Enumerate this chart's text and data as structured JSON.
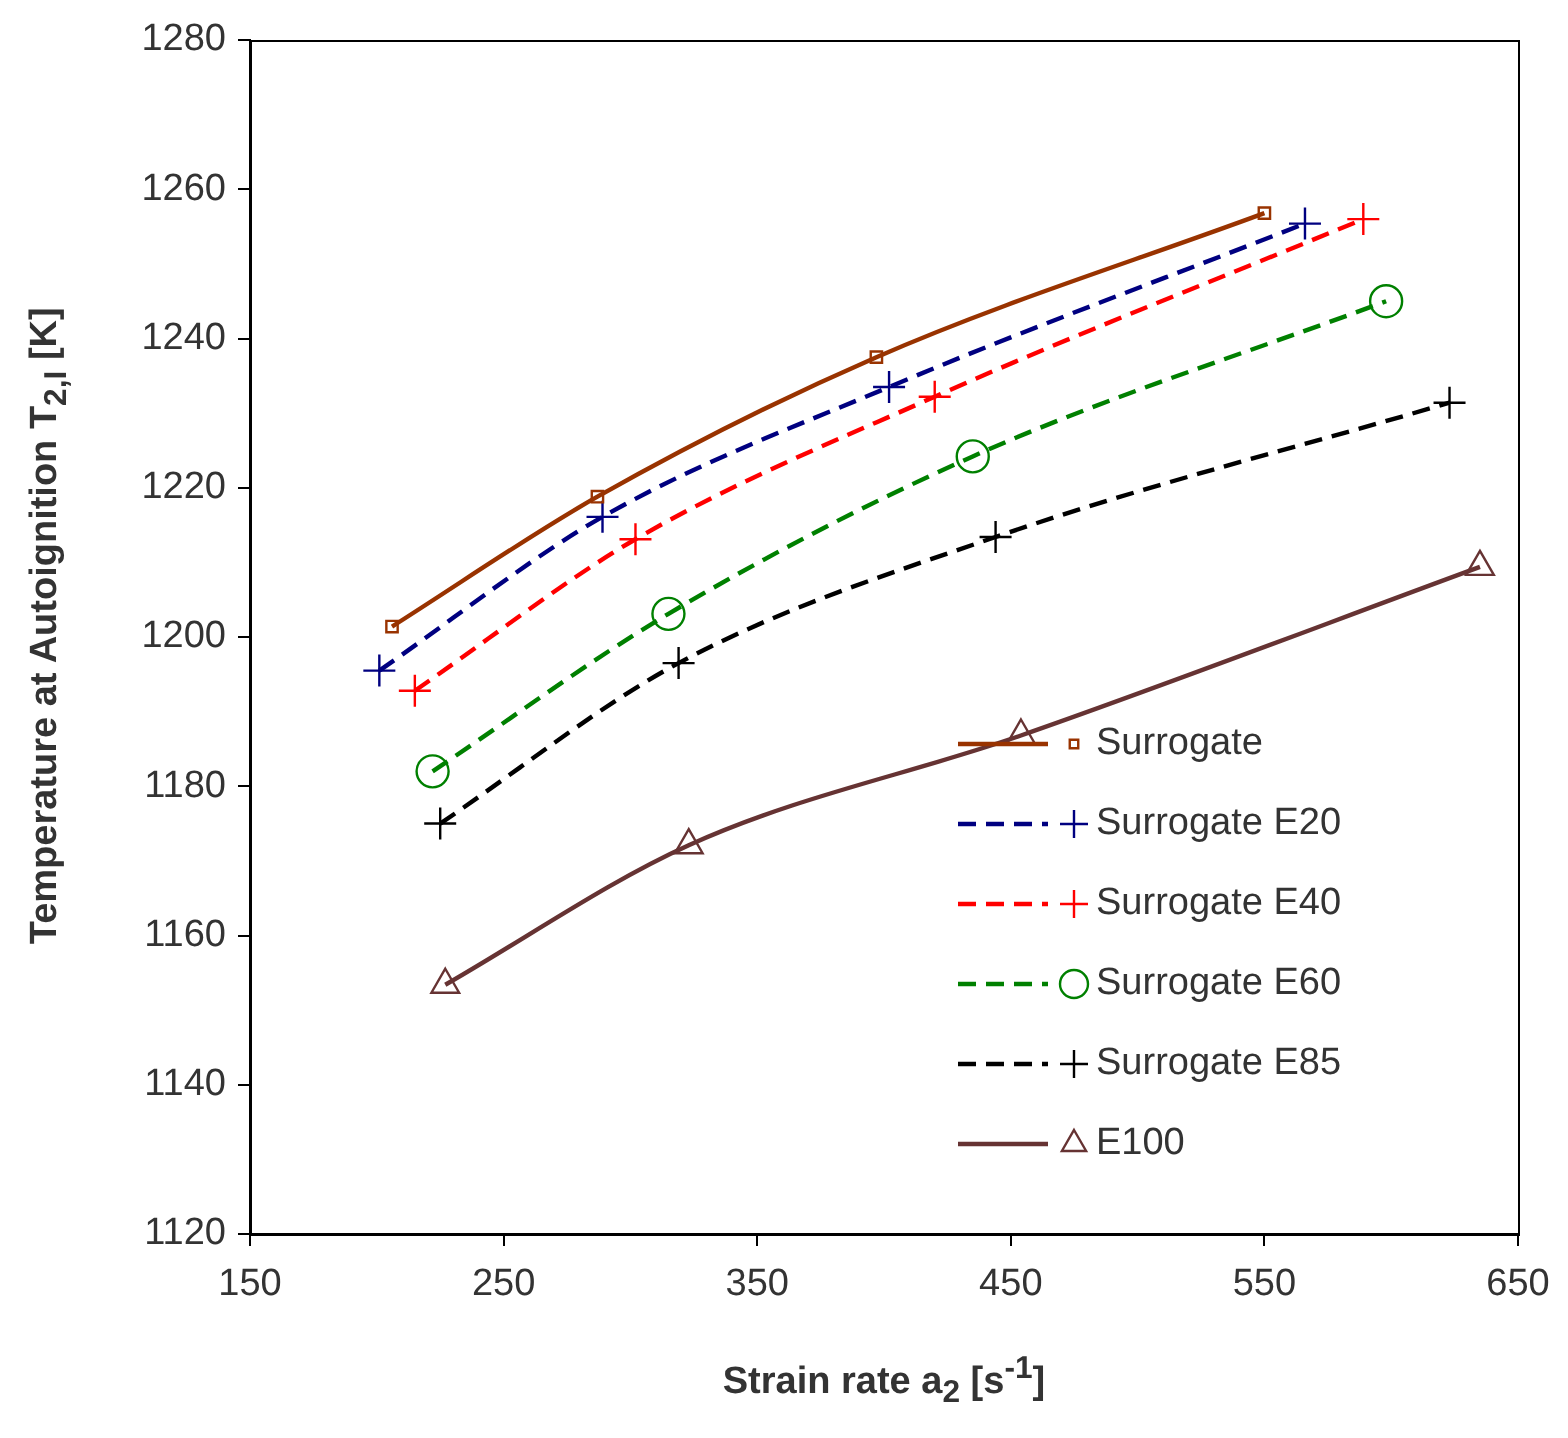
{
  "chart_data": {
    "type": "line",
    "xlabel": "Strain rate a$_{2}$ [s$^{-1}$]",
    "ylabel": "Temperature at Autoignition T$_{2,I}$ [K]",
    "xlim": [
      150,
      650
    ],
    "xticks": [
      150,
      250,
      350,
      450,
      550,
      650
    ],
    "ylim": [
      1120,
      1280
    ],
    "yticks": [
      1120,
      1140,
      1160,
      1180,
      1200,
      1220,
      1240,
      1260,
      1280
    ],
    "grid": false,
    "legend": "bottom right",
    "series": [
      {
        "name": "Surrogate",
        "color": "#993300",
        "marker": "square",
        "line_style": "solid",
        "x": [
          206,
          287,
          397,
          550
        ],
        "values": [
          1201.4,
          1218.8,
          1237.5,
          1256.8
        ]
      },
      {
        "name": "Surrogate E20",
        "color": "#000080",
        "marker": "cross",
        "line_style": "dashed",
        "x": [
          201,
          289,
          402,
          566
        ],
        "values": [
          1195.5,
          1216.1,
          1233.5,
          1255.4
        ]
      },
      {
        "name": "Surrogate E40",
        "color": "#ff0000",
        "marker": "cross",
        "line_style": "dashed",
        "x": [
          215,
          302,
          420,
          589
        ],
        "values": [
          1192.8,
          1213.1,
          1232.2,
          1256.0
        ]
      },
      {
        "name": "Surrogate E60",
        "color": "#008000",
        "marker": "circle",
        "line_style": "dashed",
        "x": [
          222,
          315,
          435,
          598
        ],
        "values": [
          1182.0,
          1203.1,
          1224.2,
          1245.0
        ]
      },
      {
        "name": "Surrogate E85",
        "color": "#000000",
        "marker": "cross",
        "line_style": "dashed",
        "x": [
          225,
          319,
          444,
          623
        ],
        "values": [
          1175.0,
          1196.5,
          1213.4,
          1231.4
        ]
      },
      {
        "name": "E100",
        "color": "#663333",
        "marker": "triangle",
        "line_style": "solid",
        "x": [
          227,
          323,
          454,
          635
        ],
        "values": [
          1153.4,
          1172.1,
          1186.8,
          1209.4
        ]
      }
    ]
  }
}
